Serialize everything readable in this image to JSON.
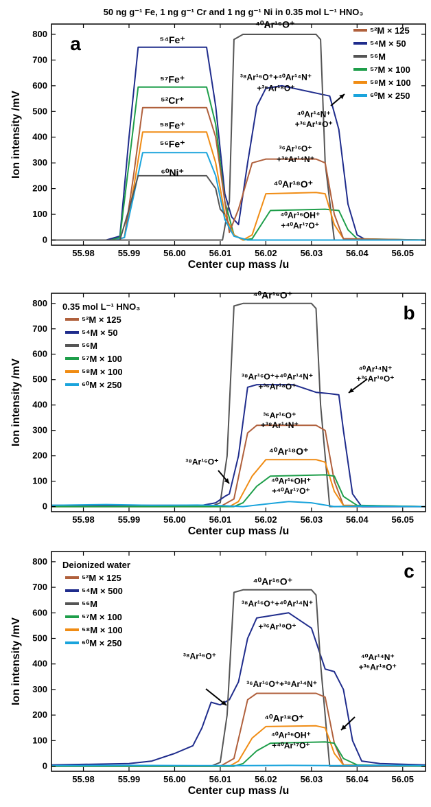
{
  "figure_title": "50 ng g⁻¹ Fe, 1 ng g⁻¹ Cr and 1 ng g⁻¹ Ni  in 0.35 mol L⁻¹ HNO₃",
  "colors": {
    "M52": "#b0603c",
    "M54": "#1f2c8c",
    "M56": "#555555",
    "M57": "#1e9e4a",
    "M58": "#f08c14",
    "M60": "#1aa4dc"
  },
  "chart_data": [
    {
      "panel": "a",
      "type": "line",
      "xlabel": "Center cup mass /u",
      "ylabel": "Ion intensity /mV",
      "xlim": [
        55.973,
        56.055
      ],
      "ylim": [
        -20,
        840
      ],
      "xticks": [
        "55.98",
        "55.99",
        "56.00",
        "56.01",
        "56.02",
        "56.03",
        "56.04",
        "56.05"
      ],
      "yticks": [
        "0",
        "100",
        "200",
        "300",
        "400",
        "500",
        "600",
        "700",
        "800"
      ],
      "legend_position": "top-right",
      "legend_title": "",
      "legend": [
        {
          "label": "⁵²M × 125",
          "key": "M52"
        },
        {
          "label": "⁵⁴M × 50",
          "key": "M54"
        },
        {
          "label": "⁵⁶M",
          "key": "M56"
        },
        {
          "label": "⁵⁷M × 100",
          "key": "M57"
        },
        {
          "label": "⁵⁸M × 100",
          "key": "M58"
        },
        {
          "label": "⁶⁰M × 250",
          "key": "M60"
        }
      ],
      "series": [
        {
          "key": "M54",
          "x": [
            55.973,
            55.985,
            55.988,
            55.99,
            55.992,
            56.007,
            56.009,
            56.011,
            56.0125,
            56.014,
            56.016,
            56.018,
            56.02,
            56.0235,
            56.034,
            56.036,
            56.038,
            56.04,
            56.042,
            56.055
          ],
          "y": [
            0,
            0,
            15,
            400,
            750,
            750,
            520,
            180,
            90,
            60,
            300,
            520,
            590,
            600,
            560,
            430,
            140,
            20,
            0,
            0
          ]
        },
        {
          "key": "M56",
          "x": [
            55.973,
            56.0105,
            56.012,
            56.013,
            56.015,
            56.031,
            56.032,
            56.033,
            56.035,
            56.055
          ],
          "y": [
            0,
            0,
            150,
            780,
            800,
            800,
            780,
            300,
            0,
            0
          ]
        },
        {
          "key": "M57",
          "x": [
            55.973,
            55.986,
            55.988,
            55.99,
            55.992,
            56.007,
            56.009,
            56.011,
            56.013,
            56.015,
            56.017,
            56.021,
            56.033,
            56.036,
            56.038,
            56.04,
            56.055
          ],
          "y": [
            0,
            0,
            10,
            300,
            595,
            595,
            450,
            150,
            20,
            0,
            5,
            115,
            120,
            115,
            40,
            5,
            0
          ]
        },
        {
          "key": "M58",
          "x": [
            55.973,
            55.987,
            55.989,
            55.991,
            55.993,
            56.007,
            56.009,
            56.011,
            56.013,
            56.015,
            56.017,
            56.02,
            56.031,
            56.033,
            56.035,
            56.037,
            56.055
          ],
          "y": [
            0,
            0,
            10,
            200,
            420,
            420,
            300,
            100,
            20,
            0,
            20,
            180,
            185,
            180,
            60,
            5,
            0
          ]
        },
        {
          "key": "M52",
          "x": [
            55.973,
            55.987,
            55.989,
            55.991,
            55.993,
            56.007,
            56.009,
            56.011,
            56.012,
            56.014,
            56.017,
            56.02,
            56.031,
            56.033,
            56.035,
            56.037,
            56.055
          ],
          "y": [
            0,
            0,
            10,
            250,
            515,
            515,
            400,
            150,
            30,
            120,
            300,
            315,
            315,
            300,
            100,
            5,
            0
          ]
        },
        {
          "key": "M60",
          "x": [
            55.973,
            55.987,
            55.989,
            55.991,
            55.993,
            56.007,
            56.009,
            56.011,
            56.013,
            56.016,
            56.055
          ],
          "y": [
            0,
            0,
            10,
            170,
            340,
            340,
            250,
            80,
            15,
            0,
            0
          ]
        },
        {
          "key": "M56b",
          "color_key": "M56",
          "x": [
            55.973,
            55.988,
            55.99,
            55.992,
            56.007,
            56.009,
            56.01,
            56.011
          ],
          "y": [
            0,
            0,
            120,
            250,
            250,
            200,
            120,
            100
          ]
        }
      ],
      "annotations": [
        {
          "text": "⁴⁰Ar¹⁶O⁺",
          "x": 56.022,
          "y": 825
        },
        {
          "text": "⁵⁴Fe⁺",
          "x": 55.9995,
          "y": 765
        },
        {
          "text": "⁵⁷Fe⁺",
          "x": 55.9995,
          "y": 612
        },
        {
          "text": "⁵²Cr⁺",
          "x": 55.9995,
          "y": 530
        },
        {
          "text": "⁵⁸Fe⁺",
          "x": 55.9995,
          "y": 433
        },
        {
          "text": "⁶⁰Ni⁺",
          "x": 55.9995,
          "y": 250
        },
        {
          "text": "⁵⁶Fe⁺",
          "x": 55.9995,
          "y": 360
        },
        {
          "text": "³⁸Ar¹⁶O⁺+⁴⁰Ar¹⁴N⁺",
          "x": 56.0222,
          "y": 622
        },
        {
          "text": "+³⁶Ar¹⁸O⁺",
          "x": 56.0222,
          "y": 580
        },
        {
          "text": "⁴⁰Ar¹⁴N⁺",
          "x": 56.0305,
          "y": 478
        },
        {
          "text": "+³⁶Ar¹⁸O⁺",
          "x": 56.0305,
          "y": 440
        },
        {
          "text": "³⁶Ar¹⁶O⁺",
          "x": 56.0265,
          "y": 345
        },
        {
          "text": "+³⁸Ar¹⁴N⁺",
          "x": 56.0265,
          "y": 303
        },
        {
          "text": "⁴⁰Ar¹⁸O⁺",
          "x": 56.026,
          "y": 205
        },
        {
          "text": "⁴⁰Ar¹⁶OH⁺",
          "x": 56.0275,
          "y": 85
        },
        {
          "text": "+⁴⁰Ar¹⁷O⁺",
          "x": 56.0275,
          "y": 45
        }
      ]
    },
    {
      "panel": "b",
      "type": "line",
      "xlabel": "Center cup mass /u",
      "ylabel": "Ion intensity /mV",
      "xlim": [
        55.973,
        56.055
      ],
      "ylim": [
        -20,
        840
      ],
      "xticks": [
        "55.98",
        "55.99",
        "56.00",
        "56.01",
        "56.02",
        "56.03",
        "56.04",
        "56.05"
      ],
      "yticks": [
        "0",
        "100",
        "200",
        "300",
        "400",
        "500",
        "600",
        "700",
        "800"
      ],
      "legend_position": "top-left",
      "legend_title": "0.35 mol L⁻¹ HNO₃",
      "legend": [
        {
          "label": "⁵²M × 125",
          "key": "M52"
        },
        {
          "label": "⁵⁴M × 50",
          "key": "M54"
        },
        {
          "label": "⁵⁶M",
          "key": "M56"
        },
        {
          "label": "⁵⁷M × 100",
          "key": "M57"
        },
        {
          "label": "⁵⁸M × 100",
          "key": "M58"
        },
        {
          "label": "⁶⁰M × 250",
          "key": "M60"
        }
      ],
      "series": [
        {
          "key": "M56",
          "x": [
            55.973,
            56.008,
            56.01,
            56.0115,
            56.013,
            56.015,
            56.03,
            56.031,
            56.032,
            56.034,
            56.055
          ],
          "y": [
            0,
            0,
            15,
            200,
            790,
            800,
            800,
            780,
            400,
            0,
            0
          ]
        },
        {
          "key": "M54",
          "x": [
            55.973,
            56.006,
            56.009,
            56.011,
            56.012,
            56.014,
            56.016,
            56.018,
            56.026,
            56.031,
            56.034,
            56.036,
            56.037,
            56.039,
            56.041,
            56.055
          ],
          "y": [
            5,
            5,
            15,
            40,
            50,
            200,
            470,
            480,
            480,
            450,
            445,
            440,
            300,
            50,
            0,
            0
          ]
        },
        {
          "key": "M52",
          "x": [
            55.973,
            56.01,
            56.013,
            56.016,
            56.018,
            56.031,
            56.033,
            56.035,
            56.037,
            56.055
          ],
          "y": [
            0,
            0,
            30,
            290,
            320,
            320,
            300,
            100,
            5,
            0
          ]
        },
        {
          "key": "M58",
          "x": [
            55.973,
            56.012,
            56.014,
            56.017,
            56.02,
            56.031,
            56.033,
            56.035,
            56.037,
            56.055
          ],
          "y": [
            0,
            0,
            20,
            120,
            185,
            185,
            175,
            60,
            5,
            0
          ]
        },
        {
          "key": "M57",
          "x": [
            55.973,
            56.013,
            56.015,
            56.018,
            56.021,
            56.033,
            56.035,
            56.037,
            56.04,
            56.055
          ],
          "y": [
            0,
            0,
            15,
            80,
            120,
            125,
            120,
            40,
            5,
            0
          ]
        },
        {
          "key": "M60",
          "x": [
            55.973,
            55.985,
            55.995,
            56.005,
            56.01,
            56.015,
            56.02,
            56.025,
            56.03,
            56.035,
            56.04,
            56.055
          ],
          "y": [
            5,
            8,
            5,
            6,
            4,
            0,
            10,
            20,
            15,
            0,
            2,
            0
          ]
        }
      ],
      "annotations": [
        {
          "text": "⁴⁰Ar¹⁶O⁺",
          "x": 56.0215,
          "y": 820
        },
        {
          "text": "³⁸Ar¹⁶O⁺+⁴⁰Ar¹⁴N⁺",
          "x": 56.0225,
          "y": 500
        },
        {
          "text": "+³⁶Ar¹⁸O⁺",
          "x": 56.0225,
          "y": 462
        },
        {
          "text": "⁴⁰Ar¹⁴N⁺",
          "x": 56.044,
          "y": 530
        },
        {
          "text": "+³⁶Ar¹⁸O⁺",
          "x": 56.044,
          "y": 492
        },
        {
          "text": "³⁶Ar¹⁶O⁺",
          "x": 56.023,
          "y": 348
        },
        {
          "text": "+³⁸Ar¹⁴N⁺",
          "x": 56.023,
          "y": 310
        },
        {
          "text": "⁴⁰Ar¹⁸O⁺",
          "x": 56.025,
          "y": 205
        },
        {
          "text": "³⁸Ar¹⁶O⁺",
          "x": 56.006,
          "y": 165
        },
        {
          "text": "⁴⁰Ar¹⁶OH⁺",
          "x": 56.0255,
          "y": 90
        },
        {
          "text": "+⁴⁰Ar¹⁷O⁺",
          "x": 56.0255,
          "y": 50
        }
      ]
    },
    {
      "panel": "c",
      "type": "line",
      "xlabel": "Center cup mass /u",
      "ylabel": "Ion intensity /mV",
      "xlim": [
        55.973,
        56.055
      ],
      "ylim": [
        -20,
        840
      ],
      "xticks": [
        "55.98",
        "55.99",
        "56.00",
        "56.01",
        "56.02",
        "56.03",
        "56.04",
        "56.05"
      ],
      "yticks": [
        "0",
        "100",
        "200",
        "300",
        "400",
        "500",
        "600",
        "700",
        "800"
      ],
      "legend_position": "top-left",
      "legend_title": "Deionized water",
      "legend": [
        {
          "label": "⁵²M × 125",
          "key": "M52"
        },
        {
          "label": "⁵⁴M × 500",
          "key": "M54"
        },
        {
          "label": "⁵⁶M",
          "key": "M56"
        },
        {
          "label": "⁵⁷M × 100",
          "key": "M57"
        },
        {
          "label": "⁵⁸M × 100",
          "key": "M58"
        },
        {
          "label": "⁶⁰M × 250",
          "key": "M60"
        }
      ],
      "series": [
        {
          "key": "M54",
          "x": [
            55.973,
            55.99,
            55.995,
            56.0,
            56.004,
            56.006,
            56.008,
            56.01,
            56.012,
            56.014,
            56.016,
            56.018,
            56.025,
            56.03,
            56.033,
            56.035,
            56.037,
            56.039,
            56.041,
            56.045,
            56.055
          ],
          "y": [
            5,
            10,
            20,
            50,
            80,
            150,
            250,
            240,
            260,
            330,
            500,
            580,
            600,
            540,
            380,
            370,
            300,
            100,
            20,
            10,
            5
          ]
        },
        {
          "key": "M56",
          "x": [
            55.973,
            56.008,
            56.01,
            56.0115,
            56.013,
            56.015,
            56.03,
            56.031,
            56.032,
            56.034,
            56.055
          ],
          "y": [
            0,
            0,
            15,
            200,
            680,
            690,
            690,
            670,
            400,
            0,
            0
          ]
        },
        {
          "key": "M52",
          "x": [
            55.973,
            56.01,
            56.013,
            56.016,
            56.018,
            56.031,
            56.033,
            56.035,
            56.037,
            56.055
          ],
          "y": [
            0,
            0,
            30,
            260,
            285,
            285,
            270,
            90,
            5,
            0
          ]
        },
        {
          "key": "M58",
          "x": [
            55.973,
            56.012,
            56.014,
            56.017,
            56.02,
            56.031,
            56.033,
            56.035,
            56.037,
            56.055
          ],
          "y": [
            0,
            0,
            20,
            110,
            155,
            158,
            150,
            50,
            5,
            0
          ]
        },
        {
          "key": "M57",
          "x": [
            55.973,
            56.013,
            56.015,
            56.018,
            56.021,
            56.033,
            56.035,
            56.037,
            56.04,
            56.055
          ],
          "y": [
            0,
            0,
            10,
            60,
            90,
            95,
            90,
            30,
            5,
            0
          ]
        },
        {
          "key": "M60",
          "x": [
            55.973,
            55.99,
            56.005,
            56.015,
            56.025,
            56.035,
            56.045,
            56.055
          ],
          "y": [
            2,
            3,
            2,
            2,
            3,
            2,
            3,
            2
          ]
        }
      ],
      "annotations": [
        {
          "text": "⁴⁰Ar¹⁶O⁺",
          "x": 56.0215,
          "y": 710
        },
        {
          "text": "³⁸Ar¹⁶O⁺+⁴⁰Ar¹⁴N⁺",
          "x": 56.0225,
          "y": 625
        },
        {
          "text": "+³⁶Ar¹⁸O⁺",
          "x": 56.0225,
          "y": 535
        },
        {
          "text": "⁴⁰Ar¹⁴N⁺",
          "x": 56.0445,
          "y": 415
        },
        {
          "text": "+³⁶Ar¹⁸O⁺",
          "x": 56.0445,
          "y": 377
        },
        {
          "text": "³⁸Ar¹⁶O⁺",
          "x": 56.0055,
          "y": 420
        },
        {
          "text": "³⁶Ar¹⁶O⁺+³⁸Ar¹⁴N⁺",
          "x": 56.0235,
          "y": 310
        },
        {
          "text": "⁴⁰Ar¹⁸O⁺",
          "x": 56.024,
          "y": 175
        },
        {
          "text": "⁴⁰Ar¹⁶OH⁺",
          "x": 56.0255,
          "y": 110
        },
        {
          "text": "+⁴⁰Ar¹⁷O⁺",
          "x": 56.0255,
          "y": 70
        }
      ]
    }
  ]
}
